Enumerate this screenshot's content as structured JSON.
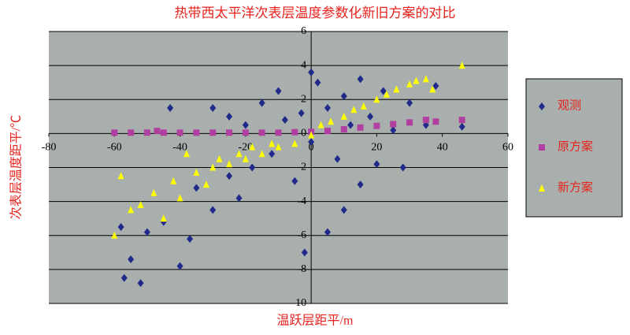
{
  "chart_data": {
    "type": "scatter",
    "title": "热带西太平洋次表层温度参数化新旧方案的对比",
    "xlabel": "温跃层距平/m",
    "ylabel": "次表层温度距平/℃",
    "xlim": [
      -80,
      60
    ],
    "ylim": [
      -10,
      6
    ],
    "xticks": [
      -80,
      -60,
      -40,
      -20,
      0,
      20,
      40,
      60
    ],
    "yticks": [
      -10,
      -8,
      -6,
      -4,
      -2,
      0,
      2,
      4,
      6
    ],
    "grid": true,
    "legend": "right",
    "series": [
      {
        "name": "观测",
        "color": "#1f2a8a",
        "marker": "diamond",
        "x": [
          -57,
          -52,
          -55,
          -40,
          -58,
          -50,
          -45,
          -43,
          -37,
          -35,
          -30,
          -30,
          -25,
          -22,
          -20,
          -18,
          -15,
          -12,
          -10,
          -8,
          -5,
          -3,
          0,
          2,
          5,
          5,
          8,
          10,
          12,
          15,
          15,
          18,
          20,
          22,
          25,
          28,
          30,
          35,
          38,
          46,
          -2,
          10,
          -25,
          0
        ],
        "y": [
          -8.5,
          -8.8,
          -7.4,
          -7.8,
          -5.5,
          -5.8,
          -5.2,
          1.5,
          -6.2,
          -3.2,
          -4.5,
          1.5,
          -2.5,
          -3.8,
          0.5,
          -2,
          1.8,
          -1.2,
          2.5,
          0.8,
          -2.8,
          1.2,
          -0.5,
          3,
          -5.8,
          1.5,
          -1.5,
          2.2,
          0.5,
          -3,
          3.2,
          1,
          -1.8,
          2.5,
          0.2,
          -2,
          1.8,
          0.5,
          2.8,
          0.4,
          -7,
          -4.5,
          1,
          3.6
        ]
      },
      {
        "name": "原方案",
        "color": "#b03fa0",
        "marker": "square",
        "x": [
          -60,
          -55,
          -50,
          -47,
          -45,
          -40,
          -35,
          -30,
          -25,
          -20,
          -15,
          -10,
          -5,
          0,
          5,
          10,
          15,
          20,
          25,
          30,
          35,
          38,
          46
        ],
        "y": [
          0.05,
          0.05,
          0.05,
          0.15,
          0.05,
          0.05,
          0.05,
          0.05,
          0.05,
          0.05,
          0.05,
          0.05,
          0.08,
          0.1,
          0.15,
          0.25,
          0.35,
          0.45,
          0.55,
          0.65,
          0.8,
          0.7,
          0.8
        ]
      },
      {
        "name": "新方案",
        "color": "#ffff00",
        "marker": "triangle",
        "x": [
          -60,
          -58,
          -55,
          -52,
          -48,
          -45,
          -42,
          -40,
          -38,
          -35,
          -32,
          -30,
          -28,
          -25,
          -22,
          -20,
          -18,
          -15,
          -12,
          -10,
          -5,
          0,
          3,
          6,
          10,
          13,
          16,
          20,
          23,
          26,
          30,
          32,
          35,
          37,
          46
        ],
        "y": [
          -6,
          -2.5,
          -4.5,
          -4.2,
          -3.5,
          -5,
          -2.8,
          -3.8,
          -1.2,
          -2.3,
          -3,
          -2,
          -1.5,
          -1.8,
          -1.2,
          -1.5,
          -0.8,
          -1.2,
          -0.6,
          -0.8,
          -0.6,
          -0.1,
          0.5,
          0.7,
          1,
          1.4,
          1.6,
          2,
          2.3,
          2.6,
          2.9,
          3.1,
          3.2,
          2.6,
          4
        ]
      }
    ]
  }
}
